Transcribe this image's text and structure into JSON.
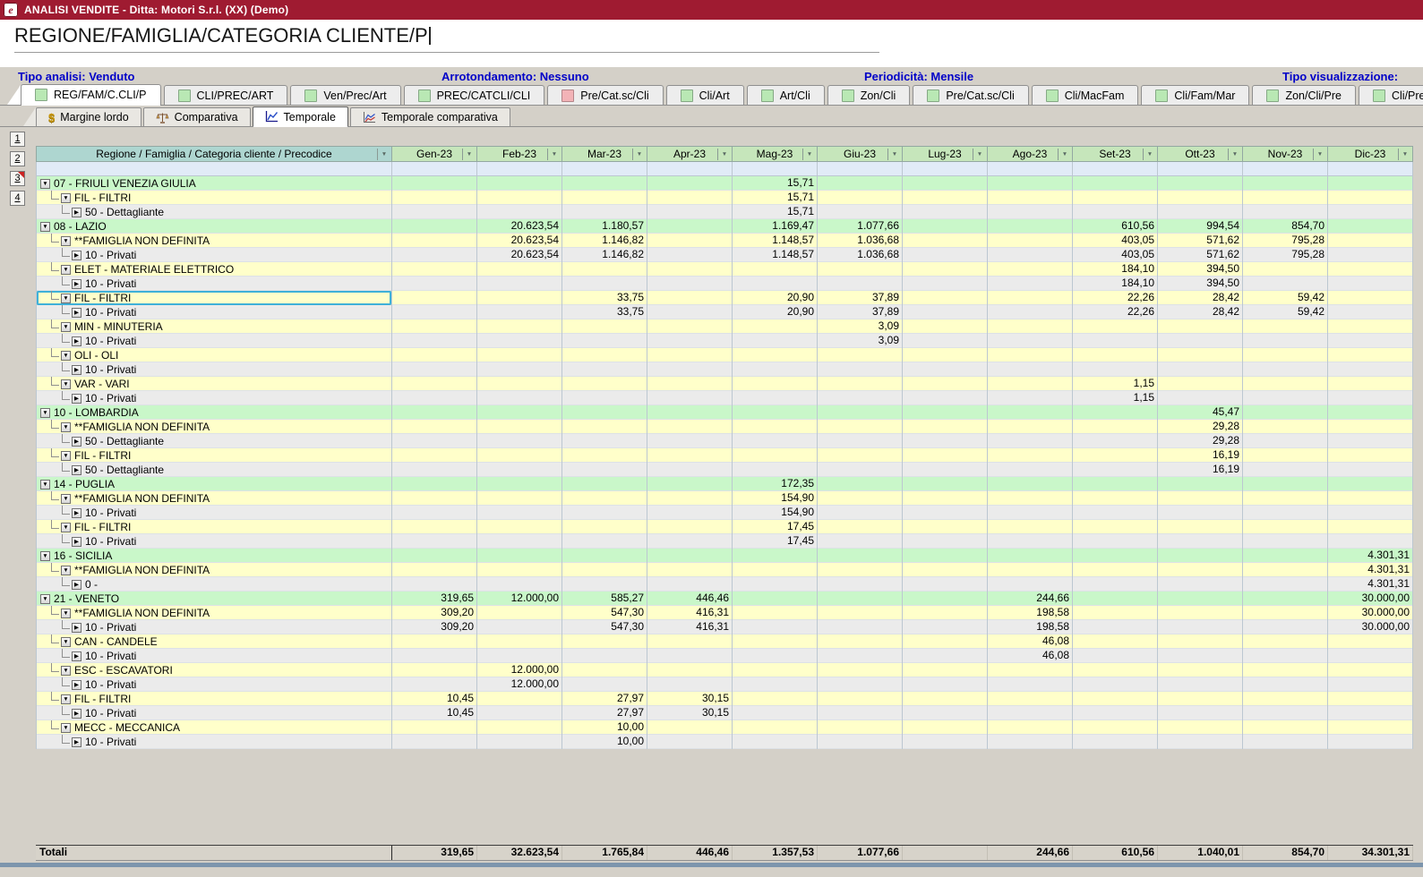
{
  "window": {
    "title": "ANALISI VENDITE - Ditta: Motori S.r.l. (XX)  (Demo)"
  },
  "page": {
    "title": "REGIONE/FAMIGLIA/CATEGORIA CLIENTE/P"
  },
  "info": {
    "tipo_analisi": "Tipo analisi: Venduto",
    "arrotondamento": "Arrotondamento: Nessuno",
    "periodicita": "Periodicità: Mensile",
    "tipo_visualizzazione": "Tipo visualizzazione:"
  },
  "view_tabs": [
    {
      "label": "REG/FAM/C.CLI/P",
      "icon": "green",
      "active": true
    },
    {
      "label": "CLI/PREC/ART",
      "icon": "green"
    },
    {
      "label": "Ven/Prec/Art",
      "icon": "green"
    },
    {
      "label": "PREC/CATCLI/CLI",
      "icon": "green"
    },
    {
      "label": "Pre/Cat.sc/Cli",
      "icon": "pink"
    },
    {
      "label": "Cli/Art",
      "icon": "green"
    },
    {
      "label": "Art/Cli",
      "icon": "green"
    },
    {
      "label": "Zon/Cli",
      "icon": "green"
    },
    {
      "label": "Pre/Cat.sc/Cli",
      "icon": "green"
    },
    {
      "label": "Cli/MacFam",
      "icon": "green"
    },
    {
      "label": "Cli/Fam/Mar",
      "icon": "green"
    },
    {
      "label": "Zon/Cli/Pre",
      "icon": "green"
    },
    {
      "label": "Cli/Pre",
      "icon": "green"
    },
    {
      "label": "",
      "icon": "green",
      "partial": true
    }
  ],
  "mode_tabs": [
    {
      "label": "Margine lordo",
      "icon": "coin"
    },
    {
      "label": "Comparativa",
      "icon": "scales"
    },
    {
      "label": "Temporale",
      "icon": "chart-line",
      "active": true
    },
    {
      "label": "Temporale comparativa",
      "icon": "chart-compare"
    }
  ],
  "page_buttons": [
    {
      "label": "1"
    },
    {
      "label": "2"
    },
    {
      "label": "3",
      "marked": true
    },
    {
      "label": "4"
    }
  ],
  "table": {
    "tree_header": "Regione / Famiglia / Categoria cliente / Precodice",
    "months": [
      "Gen-23",
      "Feb-23",
      "Mar-23",
      "Apr-23",
      "Mag-23",
      "Giu-23",
      "Lug-23",
      "Ago-23",
      "Set-23",
      "Ott-23",
      "Nov-23",
      "Dic-23"
    ],
    "rows": [
      {
        "level": 0,
        "label": "07 - FRIULI VENEZIA GIULIA",
        "values": [
          "",
          "",
          "",
          "",
          "15,71",
          "",
          "",
          "",
          "",
          "",
          "",
          ""
        ]
      },
      {
        "level": 1,
        "label": "FIL - FILTRI",
        "values": [
          "",
          "",
          "",
          "",
          "15,71",
          "",
          "",
          "",
          "",
          "",
          "",
          ""
        ]
      },
      {
        "level": 2,
        "label": "50 - Dettagliante",
        "values": [
          "",
          "",
          "",
          "",
          "15,71",
          "",
          "",
          "",
          "",
          "",
          "",
          ""
        ]
      },
      {
        "level": 0,
        "label": "08 - LAZIO",
        "values": [
          "",
          "20.623,54",
          "1.180,57",
          "",
          "1.169,47",
          "1.077,66",
          "",
          "",
          "610,56",
          "994,54",
          "854,70",
          ""
        ]
      },
      {
        "level": 1,
        "label": "**FAMIGLIA NON DEFINITA",
        "values": [
          "",
          "20.623,54",
          "1.146,82",
          "",
          "1.148,57",
          "1.036,68",
          "",
          "",
          "403,05",
          "571,62",
          "795,28",
          ""
        ]
      },
      {
        "level": 2,
        "label": "10 - Privati",
        "values": [
          "",
          "20.623,54",
          "1.146,82",
          "",
          "1.148,57",
          "1.036,68",
          "",
          "",
          "403,05",
          "571,62",
          "795,28",
          ""
        ]
      },
      {
        "level": 1,
        "label": "ELET - MATERIALE ELETTRICO",
        "values": [
          "",
          "",
          "",
          "",
          "",
          "",
          "",
          "",
          "184,10",
          "394,50",
          "",
          ""
        ]
      },
      {
        "level": 2,
        "label": "10 - Privati",
        "values": [
          "",
          "",
          "",
          "",
          "",
          "",
          "",
          "",
          "184,10",
          "394,50",
          "",
          ""
        ]
      },
      {
        "level": 1,
        "label": "FIL - FILTRI",
        "selected": true,
        "values": [
          "",
          "",
          "33,75",
          "",
          "20,90",
          "37,89",
          "",
          "",
          "22,26",
          "28,42",
          "59,42",
          ""
        ]
      },
      {
        "level": 2,
        "label": "10 - Privati",
        "values": [
          "",
          "",
          "33,75",
          "",
          "20,90",
          "37,89",
          "",
          "",
          "22,26",
          "28,42",
          "59,42",
          ""
        ]
      },
      {
        "level": 1,
        "label": "MIN - MINUTERIA",
        "values": [
          "",
          "",
          "",
          "",
          "",
          "3,09",
          "",
          "",
          "",
          "",
          "",
          ""
        ]
      },
      {
        "level": 2,
        "label": "10 - Privati",
        "values": [
          "",
          "",
          "",
          "",
          "",
          "3,09",
          "",
          "",
          "",
          "",
          "",
          ""
        ]
      },
      {
        "level": 1,
        "label": "OLI - OLI",
        "values": [
          "",
          "",
          "",
          "",
          "",
          "",
          "",
          "",
          "",
          "",
          "",
          ""
        ]
      },
      {
        "level": 2,
        "label": "10 - Privati",
        "values": [
          "",
          "",
          "",
          "",
          "",
          "",
          "",
          "",
          "",
          "",
          "",
          ""
        ]
      },
      {
        "level": 1,
        "label": "VAR - VARI",
        "values": [
          "",
          "",
          "",
          "",
          "",
          "",
          "",
          "",
          "1,15",
          "",
          "",
          ""
        ]
      },
      {
        "level": 2,
        "label": "10 - Privati",
        "values": [
          "",
          "",
          "",
          "",
          "",
          "",
          "",
          "",
          "1,15",
          "",
          "",
          ""
        ]
      },
      {
        "level": 0,
        "label": "10 - LOMBARDIA",
        "values": [
          "",
          "",
          "",
          "",
          "",
          "",
          "",
          "",
          "",
          "45,47",
          "",
          ""
        ]
      },
      {
        "level": 1,
        "label": "**FAMIGLIA NON DEFINITA",
        "values": [
          "",
          "",
          "",
          "",
          "",
          "",
          "",
          "",
          "",
          "29,28",
          "",
          ""
        ]
      },
      {
        "level": 2,
        "label": "50 - Dettagliante",
        "values": [
          "",
          "",
          "",
          "",
          "",
          "",
          "",
          "",
          "",
          "29,28",
          "",
          ""
        ]
      },
      {
        "level": 1,
        "label": "FIL - FILTRI",
        "values": [
          "",
          "",
          "",
          "",
          "",
          "",
          "",
          "",
          "",
          "16,19",
          "",
          ""
        ]
      },
      {
        "level": 2,
        "label": "50 - Dettagliante",
        "values": [
          "",
          "",
          "",
          "",
          "",
          "",
          "",
          "",
          "",
          "16,19",
          "",
          ""
        ]
      },
      {
        "level": 0,
        "label": "14 - PUGLIA",
        "values": [
          "",
          "",
          "",
          "",
          "172,35",
          "",
          "",
          "",
          "",
          "",
          "",
          ""
        ]
      },
      {
        "level": 1,
        "label": "**FAMIGLIA NON DEFINITA",
        "values": [
          "",
          "",
          "",
          "",
          "154,90",
          "",
          "",
          "",
          "",
          "",
          "",
          ""
        ]
      },
      {
        "level": 2,
        "label": "10 - Privati",
        "values": [
          "",
          "",
          "",
          "",
          "154,90",
          "",
          "",
          "",
          "",
          "",
          "",
          ""
        ]
      },
      {
        "level": 1,
        "label": "FIL - FILTRI",
        "values": [
          "",
          "",
          "",
          "",
          "17,45",
          "",
          "",
          "",
          "",
          "",
          "",
          ""
        ]
      },
      {
        "level": 2,
        "label": "10 - Privati",
        "values": [
          "",
          "",
          "",
          "",
          "17,45",
          "",
          "",
          "",
          "",
          "",
          "",
          ""
        ]
      },
      {
        "level": 0,
        "label": "16 - SICILIA",
        "values": [
          "",
          "",
          "",
          "",
          "",
          "",
          "",
          "",
          "",
          "",
          "",
          "4.301,31"
        ]
      },
      {
        "level": 1,
        "label": "**FAMIGLIA NON DEFINITA",
        "values": [
          "",
          "",
          "",
          "",
          "",
          "",
          "",
          "",
          "",
          "",
          "",
          "4.301,31"
        ]
      },
      {
        "level": 2,
        "label": "0 -",
        "values": [
          "",
          "",
          "",
          "",
          "",
          "",
          "",
          "",
          "",
          "",
          "",
          "4.301,31"
        ]
      },
      {
        "level": 0,
        "label": "21 - VENETO",
        "values": [
          "319,65",
          "12.000,00",
          "585,27",
          "446,46",
          "",
          "",
          "",
          "244,66",
          "",
          "",
          "",
          "30.000,00"
        ]
      },
      {
        "level": 1,
        "label": "**FAMIGLIA NON DEFINITA",
        "values": [
          "309,20",
          "",
          "547,30",
          "416,31",
          "",
          "",
          "",
          "198,58",
          "",
          "",
          "",
          "30.000,00"
        ]
      },
      {
        "level": 2,
        "label": "10 - Privati",
        "values": [
          "309,20",
          "",
          "547,30",
          "416,31",
          "",
          "",
          "",
          "198,58",
          "",
          "",
          "",
          "30.000,00"
        ]
      },
      {
        "level": 1,
        "label": "CAN - CANDELE",
        "values": [
          "",
          "",
          "",
          "",
          "",
          "",
          "",
          "46,08",
          "",
          "",
          "",
          ""
        ]
      },
      {
        "level": 2,
        "label": "10 - Privati",
        "values": [
          "",
          "",
          "",
          "",
          "",
          "",
          "",
          "46,08",
          "",
          "",
          "",
          ""
        ]
      },
      {
        "level": 1,
        "label": "ESC - ESCAVATORI",
        "values": [
          "",
          "12.000,00",
          "",
          "",
          "",
          "",
          "",
          "",
          "",
          "",
          "",
          ""
        ]
      },
      {
        "level": 2,
        "label": "10 - Privati",
        "values": [
          "",
          "12.000,00",
          "",
          "",
          "",
          "",
          "",
          "",
          "",
          "",
          "",
          ""
        ]
      },
      {
        "level": 1,
        "label": "FIL - FILTRI",
        "values": [
          "10,45",
          "",
          "27,97",
          "30,15",
          "",
          "",
          "",
          "",
          "",
          "",
          "",
          ""
        ]
      },
      {
        "level": 2,
        "label": "10 - Privati",
        "values": [
          "10,45",
          "",
          "27,97",
          "30,15",
          "",
          "",
          "",
          "",
          "",
          "",
          "",
          ""
        ]
      },
      {
        "level": 1,
        "label": "MECC - MECCANICA",
        "values": [
          "",
          "",
          "10,00",
          "",
          "",
          "",
          "",
          "",
          "",
          "",
          "",
          ""
        ]
      },
      {
        "level": 2,
        "label": "10 - Privati",
        "values": [
          "",
          "",
          "10,00",
          "",
          "",
          "",
          "",
          "",
          "",
          "",
          "",
          ""
        ]
      }
    ],
    "totals": {
      "label": "Totali",
      "values": [
        "319,65",
        "32.623,54",
        "1.765,84",
        "446,46",
        "1.357,53",
        "1.077,66",
        "",
        "244,66",
        "610,56",
        "1.040,01",
        "854,70",
        "34.301,31"
      ]
    }
  },
  "colors": {
    "titlebar": "#9f1b31",
    "info_text": "#0000c8",
    "selection": "#3fb0d8",
    "region_row": "#c9f7c9",
    "family_row": "#ffffca",
    "category_row": "#ebebeb",
    "month_header": "#c6e6bb",
    "tree_header": "#aed6d0"
  }
}
